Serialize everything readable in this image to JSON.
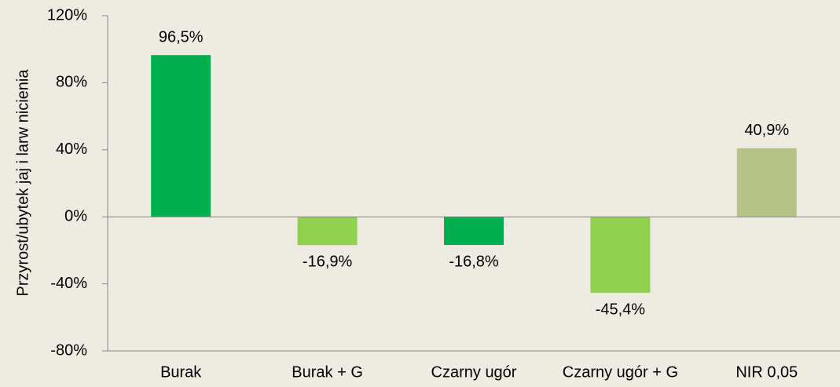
{
  "chart_data": {
    "type": "bar",
    "y_axis_label": "Przyrost/ubytek jaj i larw nicienia",
    "categories": [
      "Burak",
      "Burak + G",
      "Czarny ugór",
      "Czarny ugór + G",
      "NIR 0,05"
    ],
    "values": [
      96.5,
      -16.9,
      -16.8,
      -45.4,
      40.9
    ],
    "value_labels": [
      "96,5%",
      "-16,9%",
      "-16,8%",
      "-45,4%",
      "40,9%"
    ],
    "colors": [
      "#00b050",
      "#92d050",
      "#00b050",
      "#92d050",
      "#b6c286"
    ],
    "ylim": [
      -80,
      120
    ],
    "yticks": [
      {
        "value": -80,
        "label": "-80%"
      },
      {
        "value": -40,
        "label": "-40%"
      },
      {
        "value": 0,
        "label": "0%"
      },
      {
        "value": 40,
        "label": "40%"
      },
      {
        "value": 80,
        "label": "80%"
      },
      {
        "value": 120,
        "label": "120%"
      }
    ],
    "grid": false
  }
}
